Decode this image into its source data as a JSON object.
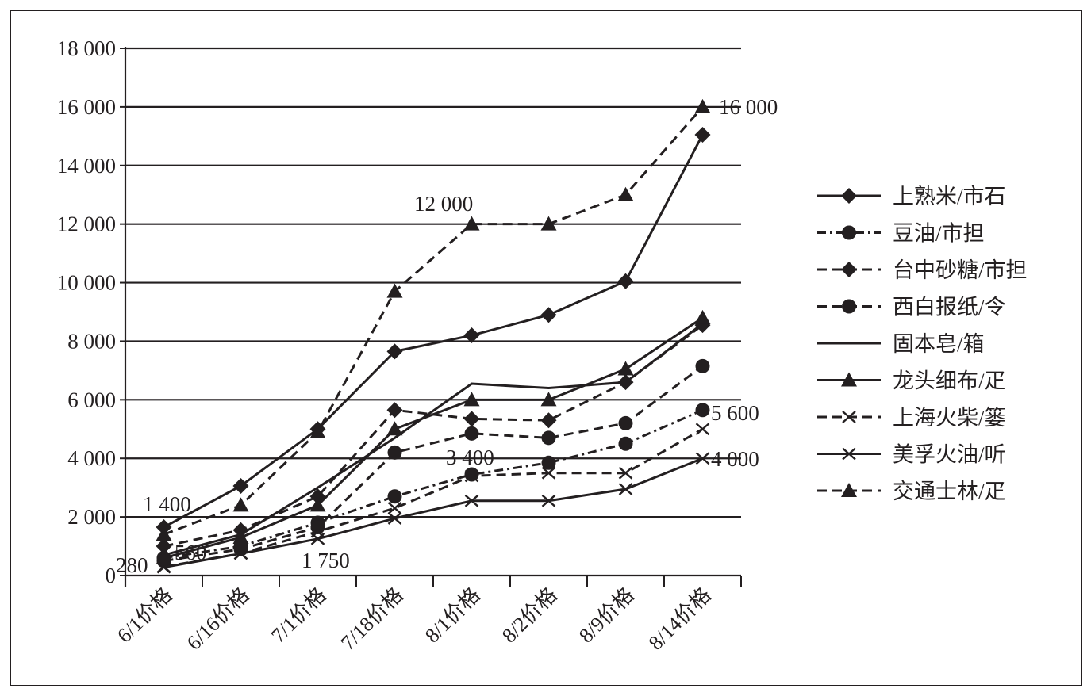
{
  "chart_data": {
    "type": "line",
    "title": "",
    "xlabel": "",
    "ylabel": "",
    "ylim": [
      0,
      18000
    ],
    "yticks": [
      0,
      2000,
      4000,
      6000,
      8000,
      10000,
      12000,
      14000,
      16000,
      18000
    ],
    "ytick_labels": [
      "0",
      "2 000",
      "4 000",
      "6 000",
      "8 000",
      "10 000",
      "12 000",
      "14 000",
      "16 000",
      "18 000"
    ],
    "categories": [
      "6/1价格",
      "6/16价格",
      "7/1价格",
      "7/18价格",
      "8/1价格",
      "8/2价格",
      "8/9价格",
      "8/14价格"
    ],
    "grid": "horizontal",
    "legend_position": "right",
    "series": [
      {
        "name": "上熟米/市石",
        "line": "solid",
        "marker": "diamond",
        "values": [
          1650,
          3060,
          5000,
          7650,
          8200,
          8900,
          10050,
          15050
        ]
      },
      {
        "name": "豆油/市担",
        "line": "dashdot",
        "marker": "circle",
        "values": [
          600,
          1000,
          1800,
          2700,
          3450,
          3850,
          4500,
          5650
        ]
      },
      {
        "name": "台中砂糖/市担",
        "line": "dashed",
        "marker": "diamond",
        "values": [
          1000,
          1550,
          2700,
          5650,
          5350,
          5300,
          6600,
          8550
        ]
      },
      {
        "name": "西白报纸/令",
        "line": "dashed",
        "marker": "circle",
        "values": [
          500,
          900,
          1650,
          4200,
          4850,
          4700,
          5200,
          7150
        ]
      },
      {
        "name": "固本皂/箱",
        "line": "solid",
        "marker": "none",
        "values": [
          700,
          1400,
          3000,
          4700,
          6550,
          6400,
          6600,
          8600
        ]
      },
      {
        "name": "龙头细布/疋",
        "line": "solid",
        "marker": "triangle",
        "values": [
          600,
          1300,
          2400,
          5000,
          6000,
          6000,
          7050,
          8800
        ]
      },
      {
        "name": "上海火柴/篓",
        "line": "dashed",
        "marker": "x",
        "values": [
          300,
          750,
          1500,
          2300,
          3400,
          3500,
          3500,
          5000
        ]
      },
      {
        "name": "美孚火油/听",
        "line": "solid",
        "marker": "x",
        "values": [
          280,
          750,
          1250,
          1950,
          2550,
          2550,
          2950,
          4000
        ]
      },
      {
        "name": "交通士林/疋",
        "line": "dashed",
        "marker": "triangle",
        "values": [
          1400,
          2400,
          4900,
          9700,
          12000,
          12000,
          13000,
          16000
        ]
      }
    ],
    "annotations": [
      {
        "text": "1 400",
        "category": 0
      },
      {
        "text": "280",
        "category": 0
      },
      {
        "text": "560",
        "category": 0
      },
      {
        "text": "1 750",
        "category": 2
      },
      {
        "text": "12 000",
        "category": 4
      },
      {
        "text": "3 400",
        "category": 4
      },
      {
        "text": "16 000",
        "category": 7
      },
      {
        "text": "5 600",
        "category": 7
      },
      {
        "text": "4 000",
        "category": 7
      }
    ]
  }
}
